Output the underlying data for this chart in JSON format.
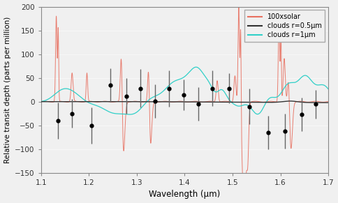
{
  "xlabel": "Wavelength (μm)",
  "ylabel": "Relative transit depth (parts per million)",
  "xlim": [
    1.1,
    1.7
  ],
  "ylim": [
    -150,
    200
  ],
  "yticks": [
    -150,
    -100,
    -50,
    0,
    50,
    100,
    150,
    200
  ],
  "xticks": [
    1.1,
    1.2,
    1.3,
    1.4,
    1.5,
    1.6,
    1.7
  ],
  "legend_labels": [
    "100xsolar",
    "clouds r=0.5μm",
    "clouds r=1μm"
  ],
  "solar_color": "#e87060",
  "cloud05_color": "#333333",
  "cloud1_color": "#30d0c8",
  "data_points_x": [
    1.135,
    1.165,
    1.205,
    1.245,
    1.278,
    1.308,
    1.338,
    1.368,
    1.398,
    1.428,
    1.458,
    1.493,
    1.535,
    1.575,
    1.61,
    1.645,
    1.673
  ],
  "data_points_y": [
    -40,
    -25,
    -50,
    35,
    12,
    28,
    1,
    28,
    14,
    -5,
    28,
    28,
    -10,
    -65,
    -62,
    -27,
    -5
  ],
  "data_errors_up": [
    38,
    30,
    38,
    35,
    37,
    40,
    35,
    38,
    32,
    35,
    37,
    32,
    38,
    35,
    37,
    35,
    30
  ],
  "data_errors_dn": [
    38,
    30,
    38,
    35,
    37,
    40,
    35,
    38,
    32,
    35,
    37,
    32,
    38,
    35,
    37,
    35,
    30
  ]
}
